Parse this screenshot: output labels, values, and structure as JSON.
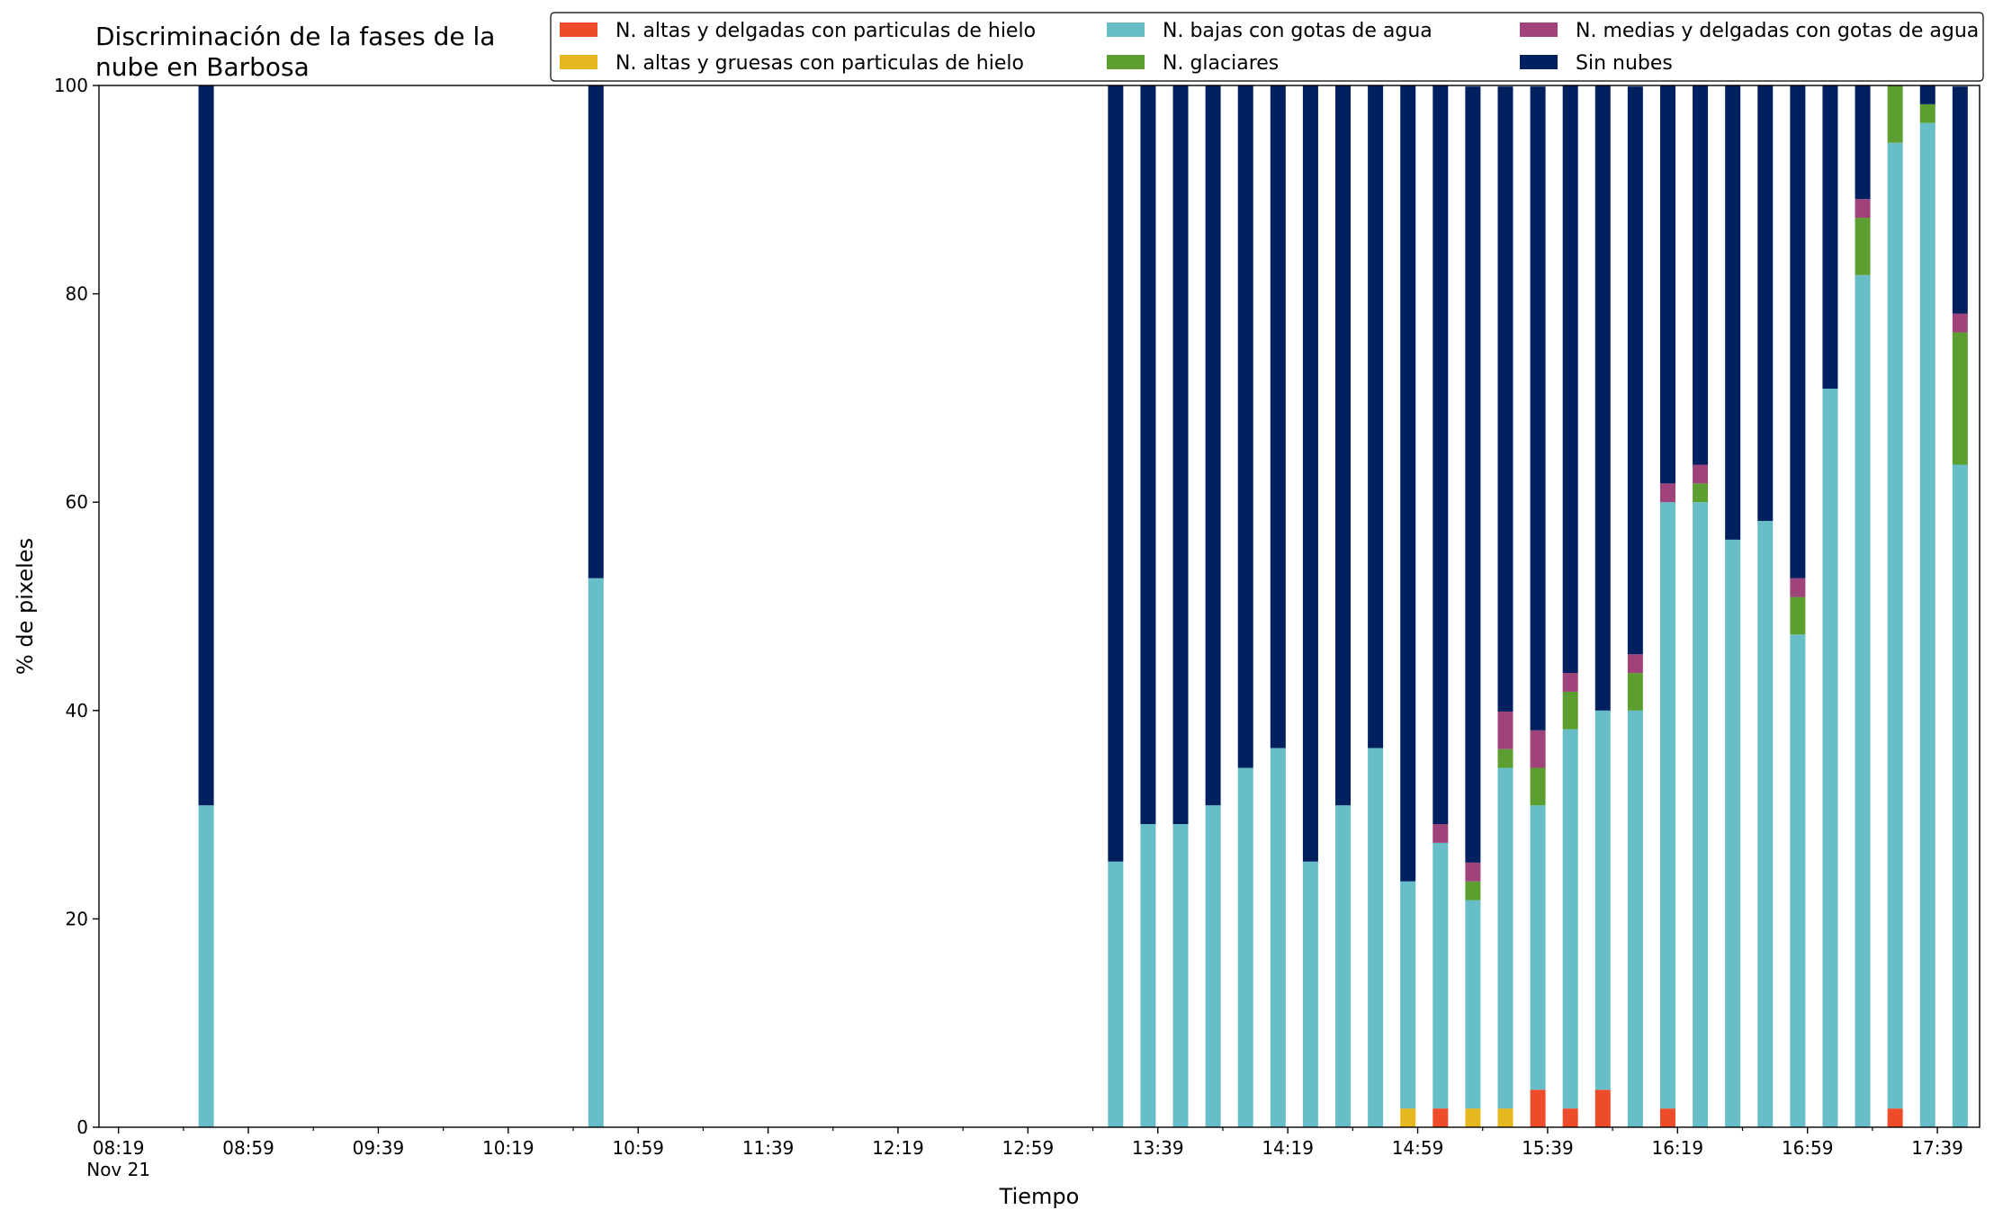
{
  "chart_data": {
    "type": "bar",
    "stacked": true,
    "title_lines": [
      "Discriminación de la fases de la",
      "nube en Barbosa"
    ],
    "xlabel": "Tiempo",
    "ylabel": "% de pixeles",
    "ylim": [
      0,
      100
    ],
    "yticks": [
      0,
      20,
      40,
      60,
      80,
      100
    ],
    "xlim": [
      "08:13",
      "17:52"
    ],
    "date_label": "Nov 21",
    "xticks_major": [
      "08:19",
      "08:59",
      "09:39",
      "10:19",
      "10:59",
      "11:39",
      "12:19",
      "12:59",
      "13:39",
      "14:19",
      "14:59",
      "15:39",
      "16:19",
      "16:59",
      "17:39"
    ],
    "xticks_minor": [
      "08:39",
      "09:19",
      "09:59",
      "10:39",
      "11:19",
      "11:59",
      "12:39",
      "13:19",
      "13:59",
      "14:39",
      "15:19",
      "15:59",
      "16:39",
      "17:19"
    ],
    "grid": false,
    "legend_position": "top",
    "times": [
      "08:46",
      "10:46",
      "13:26",
      "13:36",
      "13:46",
      "13:56",
      "14:06",
      "14:16",
      "14:26",
      "14:36",
      "14:46",
      "14:56",
      "15:06",
      "15:16",
      "15:26",
      "15:36",
      "15:46",
      "15:56",
      "16:06",
      "16:16",
      "16:26",
      "16:36",
      "16:46",
      "16:56",
      "17:06",
      "17:16",
      "17:26",
      "17:36",
      "17:46"
    ],
    "series": [
      {
        "name": "N. altas y delgadas con particulas de hielo",
        "color": "#ed4b2a",
        "values": [
          0,
          0,
          0,
          0,
          0,
          0,
          0,
          0,
          0,
          0,
          0,
          0,
          1.8,
          0,
          0,
          3.6,
          1.8,
          3.6,
          0,
          1.8,
          0,
          0,
          0,
          0,
          0,
          0,
          1.8,
          0,
          0
        ]
      },
      {
        "name": "N. altas y gruesas con particulas de hielo",
        "color": "#e6b820",
        "values": [
          0,
          0,
          0,
          0,
          0,
          0,
          0,
          0,
          0,
          0,
          0,
          1.8,
          0,
          1.8,
          1.8,
          0,
          0,
          0,
          0,
          0,
          0,
          0,
          0,
          0,
          0,
          0,
          0,
          0,
          0
        ]
      },
      {
        "name": "N. bajas con gotas de agua",
        "color": "#67bec8",
        "values": [
          30.9,
          52.7,
          25.5,
          29.1,
          29.1,
          30.9,
          34.5,
          36.4,
          25.5,
          30.9,
          36.4,
          21.8,
          25.5,
          20.0,
          32.7,
          27.3,
          36.4,
          36.4,
          40.0,
          58.2,
          60.0,
          56.4,
          58.2,
          47.3,
          70.9,
          81.8,
          92.7,
          96.4,
          63.6
        ]
      },
      {
        "name": "N. glaciares",
        "color": "#5c9e2f",
        "values": [
          0,
          0,
          0,
          0,
          0,
          0,
          0,
          0,
          0,
          0,
          0,
          0,
          0,
          1.8,
          1.8,
          3.6,
          3.6,
          0,
          3.6,
          0,
          1.8,
          0,
          0,
          3.6,
          0,
          5.5,
          5.5,
          1.8,
          12.7
        ]
      },
      {
        "name": "N. medias y delgadas con gotas de agua",
        "color": "#a0437a",
        "values": [
          0,
          0,
          0,
          0,
          0,
          0,
          0,
          0,
          0,
          0,
          0,
          0,
          1.8,
          1.8,
          3.6,
          3.6,
          1.8,
          0,
          1.8,
          1.8,
          1.8,
          0,
          0,
          1.8,
          0,
          1.8,
          0,
          0,
          1.8
        ]
      },
      {
        "name": "Sin nubes",
        "color": "#00205f",
        "values": [
          69.1,
          47.3,
          74.5,
          70.9,
          70.9,
          69.1,
          65.5,
          63.6,
          74.5,
          69.1,
          63.6,
          76.4,
          70.9,
          74.5,
          60.0,
          61.8,
          56.4,
          60.0,
          54.5,
          38.2,
          36.4,
          43.6,
          41.8,
          47.3,
          29.1,
          10.9,
          0,
          1.8,
          21.8
        ]
      }
    ],
    "legend_order": [
      0,
      1,
      2,
      3,
      4,
      5
    ]
  }
}
